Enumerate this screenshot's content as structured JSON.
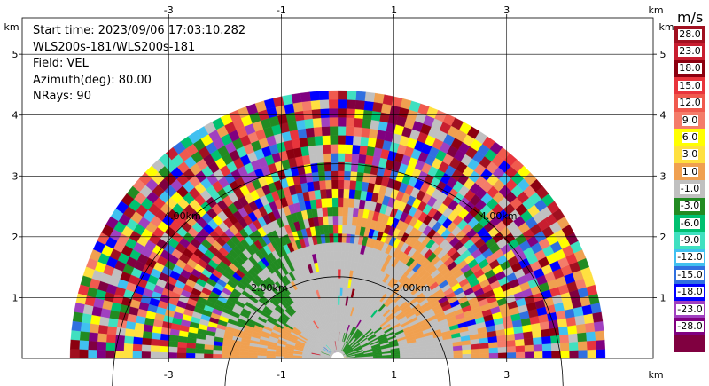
{
  "info": {
    "start_time": "Start time: 2023/09/06 17:03:10.282",
    "instrument": "WLS200s-181/WLS200s-181",
    "field": "Field: VEL",
    "azimuth": "Azimuth(deg): 80.00",
    "nrays": "NRays: 90"
  },
  "chart_data": {
    "type": "heatmap",
    "subtype": "RHI radar scan (polar)",
    "field": "VEL",
    "azimuth_deg": 80.0,
    "n_rays": 90,
    "x_axis": {
      "unit_label": "km",
      "range": [
        -5.6,
        5.6
      ],
      "ticks": [
        -3,
        -1,
        1,
        3
      ]
    },
    "y_axis": {
      "unit_label": "km",
      "range": [
        0,
        5.6
      ],
      "ticks": [
        1,
        2,
        3,
        4,
        5
      ]
    },
    "range_rings": [
      {
        "label": "2.00km",
        "radius_km": 2.0
      },
      {
        "label": "4.00km",
        "radius_km": 4.0
      }
    ],
    "max_range_km": 4.75,
    "grid": true,
    "colorbar": {
      "unit": "m/s",
      "labels": [
        "28.0",
        "23.0",
        "18.0",
        "15.0",
        "12.0",
        "9.0",
        "6.0",
        "3.0",
        "1.0",
        "-1.0",
        "-3.0",
        "-6.0",
        "-9.0",
        "-12.0",
        "-15.0",
        "-18.0",
        "-23.0",
        "-28.0"
      ],
      "colors": [
        "#a01020",
        "#c81e30",
        "#8c0010",
        "#e8343c",
        "#f05a4e",
        "#f47c6a",
        "#ffff00",
        "#ffe040",
        "#f0a050",
        "#c0c0c0",
        "#228b22",
        "#00c070",
        "#40e0c0",
        "#40c0f0",
        "#3070e0",
        "#0000ff",
        "#a040c0",
        "#800080",
        "#800040"
      ]
    }
  }
}
